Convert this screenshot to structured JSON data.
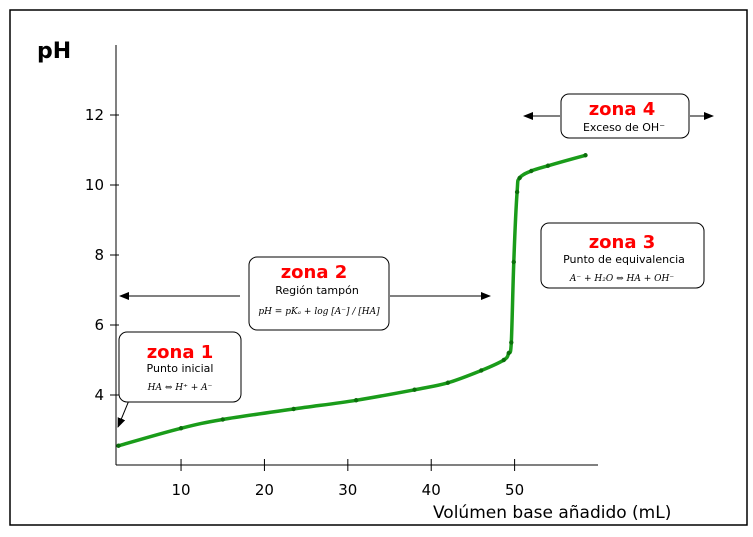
{
  "chart_data": {
    "type": "line",
    "ylabel": "pH",
    "xlabel": "Volúmen base añadido (mL)",
    "x_ticks": [
      10,
      20,
      30,
      40,
      50
    ],
    "y_ticks": [
      4,
      6,
      8,
      10,
      12
    ],
    "xlim": [
      2.2,
      60
    ],
    "ylim": [
      2,
      14
    ],
    "line_color": "#1a9c1a",
    "series": [
      {
        "x": [
          2.5,
          10,
          15,
          23.5,
          31,
          38,
          42,
          46,
          48.7,
          49.3,
          49.6,
          49.9,
          50.3,
          50.6,
          52,
          54,
          58.5
        ],
        "y": [
          2.55,
          3.05,
          3.3,
          3.6,
          3.85,
          4.15,
          4.35,
          4.7,
          5.0,
          5.2,
          5.5,
          7.8,
          9.8,
          10.2,
          10.4,
          10.55,
          10.85
        ]
      }
    ],
    "annotations": [
      {
        "title": "zona 1",
        "subtitle": "Punto inicial",
        "equation": "HA ⇔ H⁺ + A⁻"
      },
      {
        "title": "zona 2",
        "subtitle": "Región tampón",
        "equation": "pH = pKₐ + log [A⁻] / [HA]"
      },
      {
        "title": "zona 3",
        "subtitle": "Punto de equivalencia",
        "equation": "A⁻ + H₂O ⇔ HA + OH⁻"
      },
      {
        "title": "zona 4",
        "subtitle": "Exceso de OH⁻"
      }
    ]
  }
}
